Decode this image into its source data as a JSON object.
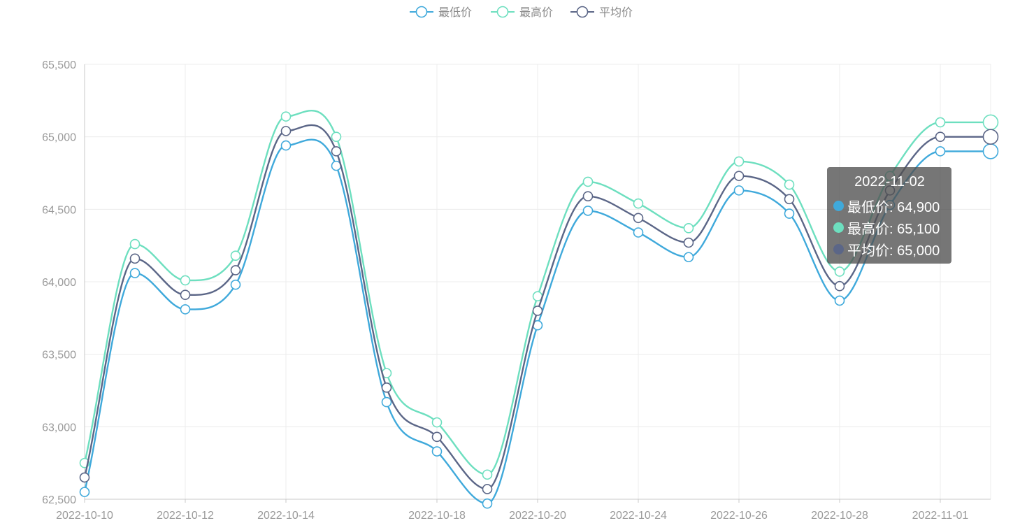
{
  "chart_data": {
    "type": "line",
    "smooth": true,
    "legend_position": "top-center",
    "grid": true,
    "x": [
      "2022-10-10",
      "2022-10-11",
      "2022-10-12",
      "2022-10-13",
      "2022-10-14",
      "2022-10-15",
      "2022-10-16",
      "2022-10-18",
      "2022-10-19",
      "2022-10-20",
      "2022-10-21",
      "2022-10-24",
      "2022-10-25",
      "2022-10-26",
      "2022-10-27",
      "2022-10-28",
      "2022-10-31",
      "2022-11-01",
      "2022-11-02"
    ],
    "x_tick_labels": [
      "2022-10-10",
      "2022-10-12",
      "2022-10-14",
      "2022-10-18",
      "2022-10-20",
      "2022-10-24",
      "2022-10-26",
      "2022-10-28",
      "2022-11-01"
    ],
    "x_tick_indices": [
      0,
      2,
      4,
      7,
      9,
      11,
      13,
      15,
      17
    ],
    "ylim": [
      62500,
      65500
    ],
    "y_ticks": [
      62500,
      63000,
      63500,
      64000,
      64500,
      65000,
      65500
    ],
    "y_tick_labels": [
      "62,500",
      "63,000",
      "63,500",
      "64,000",
      "64,500",
      "65,000",
      "65,500"
    ],
    "series": [
      {
        "name": "最低价",
        "color": "#3fa9db",
        "values": [
          62550,
          64060,
          63810,
          63980,
          64940,
          64800,
          63170,
          62830,
          62470,
          63700,
          64490,
          64340,
          64170,
          64630,
          64470,
          63870,
          64530,
          64900,
          64900
        ]
      },
      {
        "name": "最高价",
        "color": "#6ddfbf",
        "values": [
          62750,
          64260,
          64010,
          64180,
          65140,
          65000,
          63370,
          63030,
          62670,
          63900,
          64690,
          64540,
          64370,
          64830,
          64670,
          64070,
          64730,
          65100,
          65100
        ]
      },
      {
        "name": "平均价",
        "color": "#5b6687",
        "values": [
          62650,
          64160,
          63910,
          64080,
          65040,
          64900,
          63270,
          62930,
          62570,
          63800,
          64590,
          64440,
          64270,
          64730,
          64570,
          63970,
          64630,
          65000,
          65000
        ]
      }
    ]
  },
  "tooltip": {
    "title": "2022-11-02",
    "rows": [
      {
        "label": "最低价: 64,900",
        "color": "#3fa9db"
      },
      {
        "label": "最高价: 65,100",
        "color": "#6ddfbf"
      },
      {
        "label": "平均价: 65,000",
        "color": "#5b6687"
      }
    ]
  }
}
